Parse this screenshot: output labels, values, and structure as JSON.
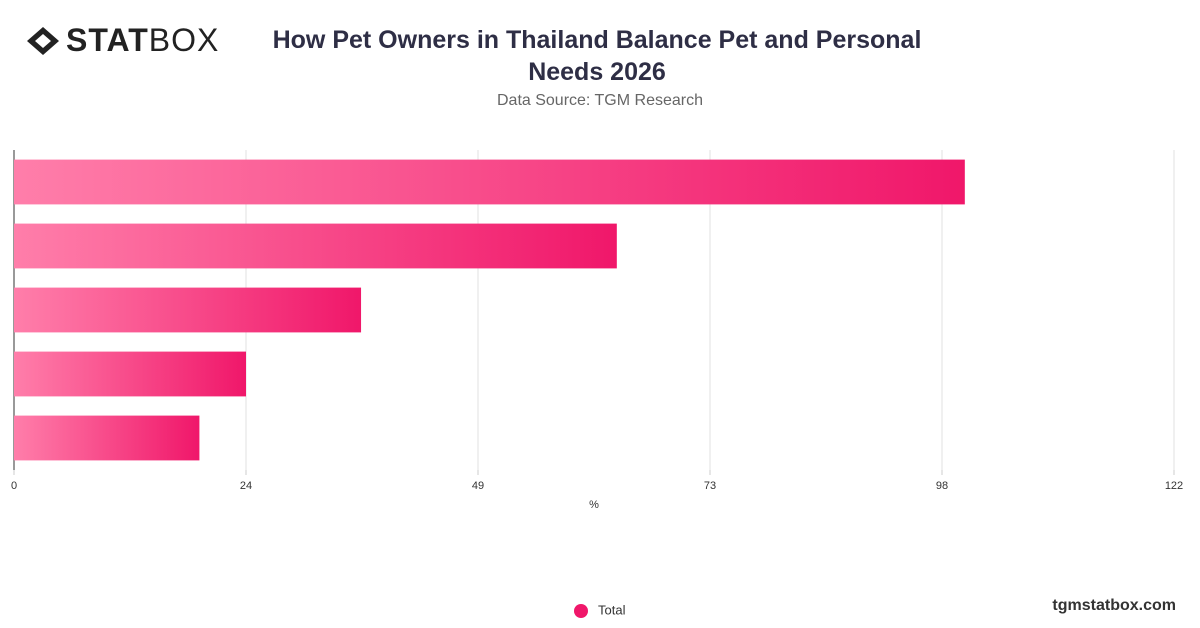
{
  "logo": [
    "STAT",
    "BOX"
  ],
  "footer": "tgmstatbox.com",
  "chart_data": {
    "type": "bar",
    "orientation": "horizontal",
    "title": "How Pet Owners in Thailand Balance Pet and Personal Needs 2026",
    "subtitle": "Data Source: TGM Research",
    "x_label": "%",
    "categories": [
      null,
      null,
      null,
      null,
      null
    ],
    "series": [
      {
        "name": "Total",
        "color": "#f0176a",
        "values": [
          100,
          63.4,
          36.5,
          24.4,
          19.5
        ]
      }
    ],
    "xlim": [
      0,
      122
    ],
    "xticks": [
      0,
      {
        "value": 24.4,
        "label": "24"
      },
      {
        "value": 48.8,
        "label": "49"
      },
      {
        "value": 73.2,
        "label": "73"
      },
      {
        "value": 97.6,
        "label": "98"
      },
      122
    ],
    "grid": true,
    "legend": "bottom"
  }
}
